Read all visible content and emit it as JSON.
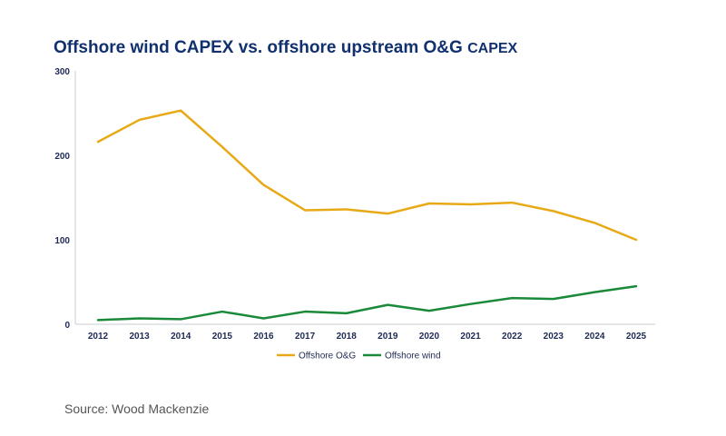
{
  "title_main": "Offshore wind CAPEX vs. offshore upstream O&G",
  "title_suffix": "CAPEX",
  "source": "Source: Wood Mackenzie",
  "colors": {
    "oil_gas": "#e8a917",
    "wind": "#1a8a3a",
    "axis": "#c8ccd6",
    "title": "#10306e"
  },
  "chart_data": {
    "type": "line",
    "title": "Offshore wind CAPEX vs. offshore upstream O&G CAPEX",
    "xlabel": "",
    "ylabel": "",
    "ylim": [
      0,
      300
    ],
    "yticks": [
      "0",
      "100",
      "200",
      "300"
    ],
    "grid": false,
    "legend_position": "bottom-center",
    "categories": [
      "2012",
      "2013",
      "2014",
      "2015",
      "2016",
      "2017",
      "2018",
      "2019",
      "2020",
      "2021",
      "2022",
      "2023",
      "2024",
      "2025"
    ],
    "series": [
      {
        "name": "Offshore O&G",
        "color": "#e8a917",
        "values": [
          216,
          242,
          253,
          210,
          165,
          135,
          136,
          131,
          143,
          142,
          144,
          134,
          120,
          100
        ]
      },
      {
        "name": "Offshore wind",
        "color": "#1a8a3a",
        "values": [
          5,
          7,
          6,
          15,
          7,
          15,
          13,
          23,
          16,
          24,
          31,
          30,
          38,
          45
        ]
      }
    ]
  }
}
